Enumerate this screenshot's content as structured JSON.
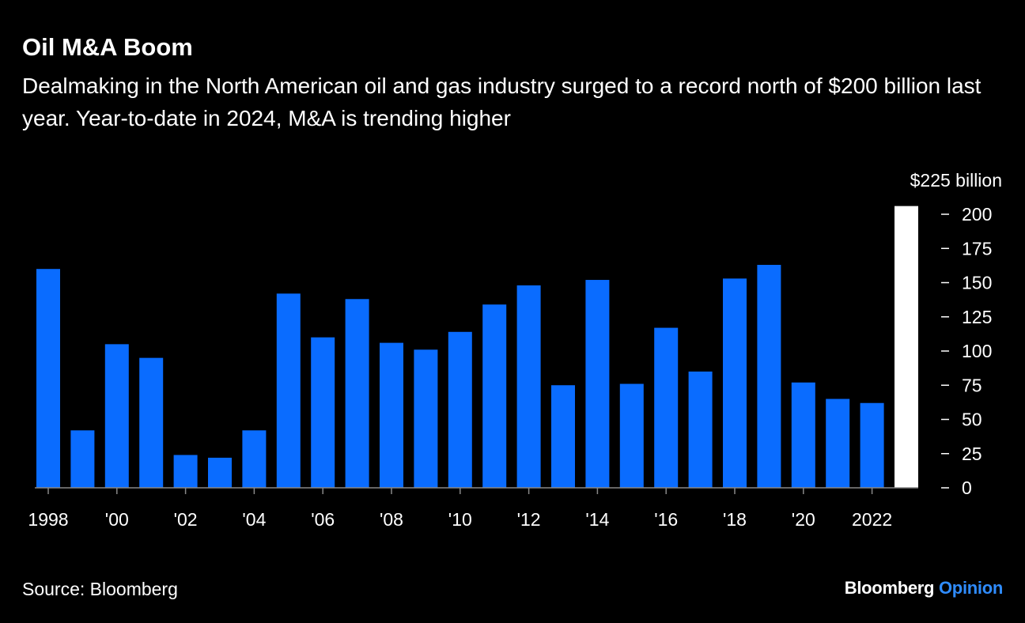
{
  "chart_data": {
    "type": "bar",
    "title": "Oil M&A Boom",
    "subtitle": "Dealmaking in the North American oil and gas industry surged to a record north of $200 billion last year. Year-to-date in 2024, M&A is trending higher",
    "categories": [
      1998,
      1999,
      2000,
      2001,
      2002,
      2003,
      2004,
      2005,
      2006,
      2007,
      2008,
      2009,
      2010,
      2011,
      2012,
      2013,
      2014,
      2015,
      2016,
      2017,
      2018,
      2019,
      2020,
      2021,
      2022,
      2023
    ],
    "values": [
      160,
      42,
      105,
      95,
      24,
      22,
      42,
      142,
      110,
      138,
      106,
      101,
      114,
      134,
      148,
      75,
      152,
      76,
      117,
      85,
      153,
      163,
      77,
      65,
      62,
      206
    ],
    "highlight_index": 25,
    "colors": {
      "bar": "#0a6cff",
      "highlight": "#ffffff",
      "background": "#000000"
    },
    "ylim": [
      0,
      225
    ],
    "yunit_label": "$225 billion",
    "yticks": [
      "0",
      "25",
      "50",
      "75",
      "100",
      "125",
      "150",
      "175",
      "200"
    ],
    "xtick_labels": [
      {
        "year": 1998,
        "label": "1998"
      },
      {
        "year": 2000,
        "label": "'00"
      },
      {
        "year": 2002,
        "label": "'02"
      },
      {
        "year": 2004,
        "label": "'04"
      },
      {
        "year": 2006,
        "label": "'06"
      },
      {
        "year": 2008,
        "label": "'08"
      },
      {
        "year": 2010,
        "label": "'10"
      },
      {
        "year": 2012,
        "label": "'12"
      },
      {
        "year": 2014,
        "label": "'14"
      },
      {
        "year": 2016,
        "label": "'16"
      },
      {
        "year": 2018,
        "label": "'18"
      },
      {
        "year": 2020,
        "label": "'20"
      },
      {
        "year": 2022,
        "label": "2022"
      }
    ],
    "yaxis_position": "right",
    "grid": false
  },
  "footer": {
    "source": "Source: Bloomberg",
    "logo_main": "Bloomberg",
    "logo_accent": "Opinion"
  }
}
